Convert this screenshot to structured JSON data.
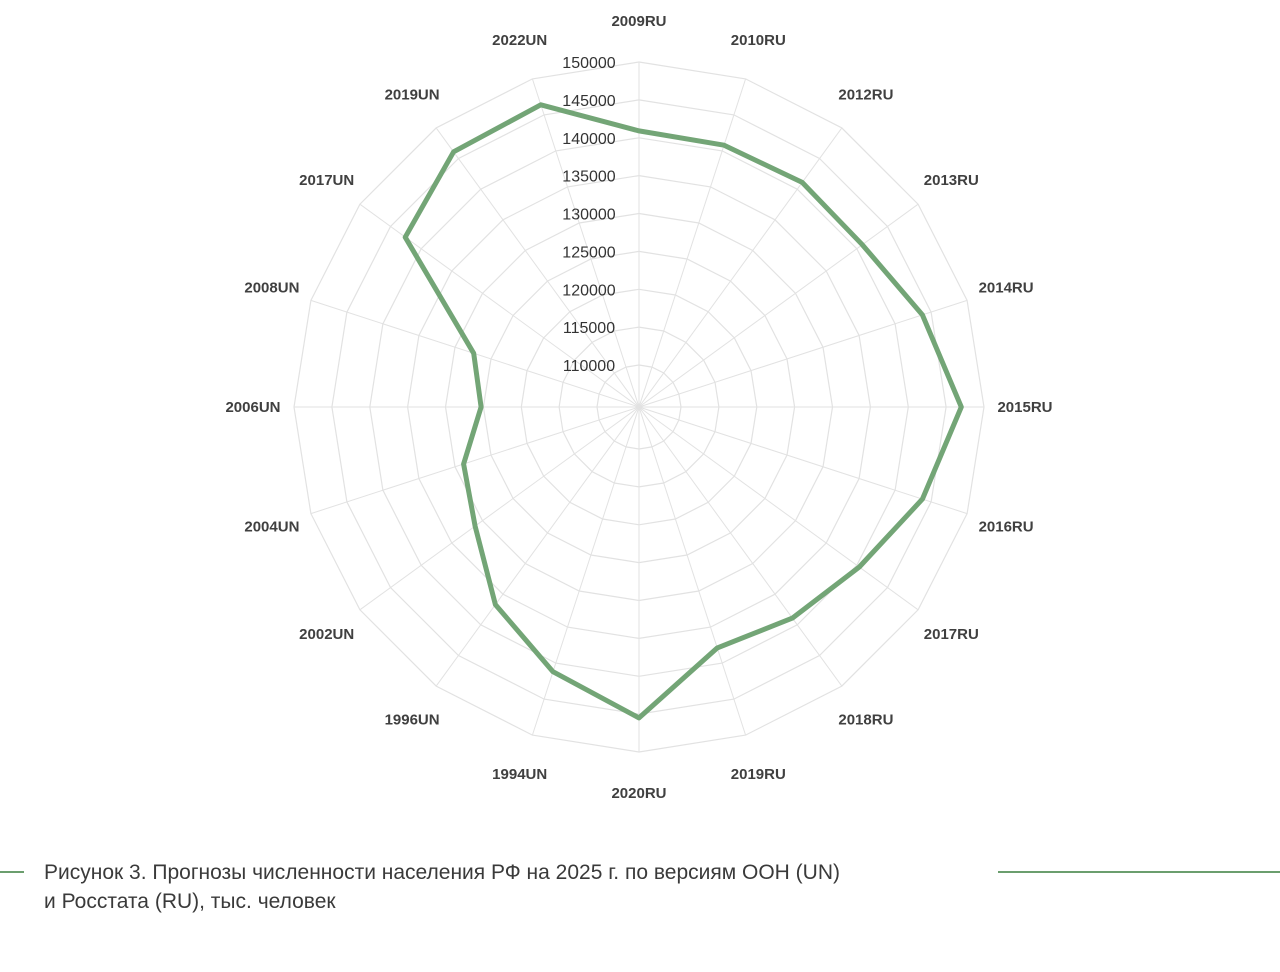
{
  "chart_data": {
    "type": "radar",
    "categories": [
      "2009RU",
      "2010RU",
      "2012RU",
      "2013RU",
      "2014RU",
      "2015RU",
      "2016RU",
      "2017RU",
      "2018RU",
      "2019RU",
      "2020RU",
      "1994UN",
      "1996UN",
      "2002UN",
      "2004UN",
      "2006UN",
      "2008UN",
      "2017UN",
      "2019UN",
      "2022UN"
    ],
    "series": [
      {
        "values": [
          140900,
          140800,
          141100,
          140900,
          143800,
          147000,
          143800,
          140400,
          138900,
          137900,
          145500,
          141200,
          136700,
          131200,
          128800,
          125300,
          127400,
          142600,
          146100,
          146400
        ],
        "color": "#73a576"
      }
    ],
    "rlim": [
      110000,
      150000
    ],
    "ticks": [
      "110000",
      "115000",
      "120000",
      "125000",
      "130000",
      "135000",
      "140000",
      "145000",
      "150000"
    ],
    "grid": true,
    "legend": "none"
  },
  "caption": {
    "line1": "Рисунок 3. Прогнозы численности населения РФ на 2025 г. по версиям ООН (UN)",
    "line2": "и Росстата (RU), тыс. человек"
  },
  "colors": {
    "accent": "#73a576",
    "rule": "#6b9e6e",
    "grid": "#e2e2e2"
  }
}
